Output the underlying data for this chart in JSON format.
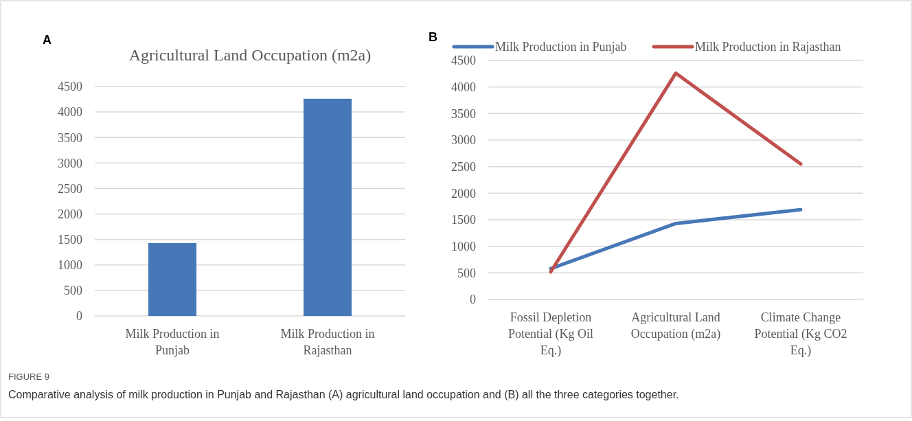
{
  "chart_data": [
    {
      "type": "bar",
      "title": "Agricultural Land Occupation (m2a)",
      "categories": [
        "Milk Production in Punjab",
        "Milk Production in Rajasthan"
      ],
      "values": [
        1430,
        4260
      ],
      "color": "#4677b6",
      "ylim": [
        0,
        4500
      ],
      "yticks": [
        0,
        500,
        1000,
        1500,
        2000,
        2500,
        3000,
        3500,
        4000,
        4500
      ],
      "grid": "y",
      "legend": false,
      "annotations": [
        "A",
        "FIGURE 9",
        "Comparative analysis of milk production in Punjab and Rajasthan (A) agricultural land occupation and (B) all the three categories together."
      ]
    },
    {
      "type": "line",
      "categories": [
        "Fossil Depletion Potential (Kg Oil Eq.)",
        "Agricultural Land Occupation (m2a)",
        "Climate Change Potential (Kg CO2 Eq.)"
      ],
      "series": [
        {
          "name": "Milk Production in Punjab",
          "color": "#4677b6",
          "values": [
            580,
            1430,
            1690
          ]
        },
        {
          "name": "Milk Production in Rajasthan",
          "color": "#c0504d",
          "values": [
            520,
            4260,
            2550
          ]
        }
      ],
      "ylim": [
        0,
        4500
      ],
      "yticks": [
        0,
        500,
        1000,
        1500,
        2000,
        2500,
        3000,
        3500,
        4000,
        4500
      ],
      "grid": "y",
      "legend": "top",
      "marker": "none",
      "line_style": "solid",
      "annotations": [
        "B"
      ]
    }
  ]
}
